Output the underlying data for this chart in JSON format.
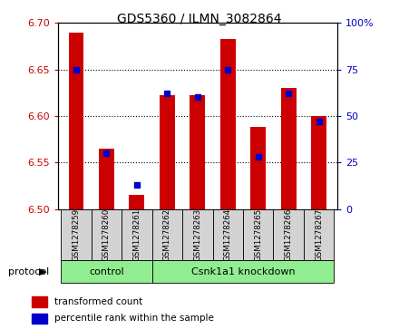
{
  "title": "GDS5360 / ILMN_3082864",
  "samples": [
    "GSM1278259",
    "GSM1278260",
    "GSM1278261",
    "GSM1278262",
    "GSM1278263",
    "GSM1278264",
    "GSM1278265",
    "GSM1278266",
    "GSM1278267"
  ],
  "transformed_count": [
    6.69,
    6.565,
    6.515,
    6.622,
    6.622,
    6.683,
    6.588,
    6.63,
    6.6
  ],
  "percentile_rank": [
    75,
    30,
    13,
    62,
    60,
    75,
    28,
    62,
    47
  ],
  "ylim_left": [
    6.5,
    6.7
  ],
  "ylim_right": [
    0,
    100
  ],
  "yticks_left": [
    6.5,
    6.55,
    6.6,
    6.65,
    6.7
  ],
  "yticks_right": [
    0,
    25,
    50,
    75,
    100
  ],
  "ytick_labels_right": [
    "0",
    "25",
    "50",
    "75",
    "100%"
  ],
  "bar_color": "#cc0000",
  "blue_color": "#0000cc",
  "bg_color": "#d3d3d3",
  "plot_bg": "#ffffff",
  "ctrl_label": "control",
  "kd_label": "Csnk1a1 knockdown",
  "group_color": "#90ee90",
  "protocol_label": "protocol",
  "legend_tc": "transformed count",
  "legend_pr": "percentile rank within the sample",
  "left_tick_color": "#cc0000",
  "right_tick_color": "#0000cc",
  "bar_width": 0.5,
  "base_value": 6.5
}
